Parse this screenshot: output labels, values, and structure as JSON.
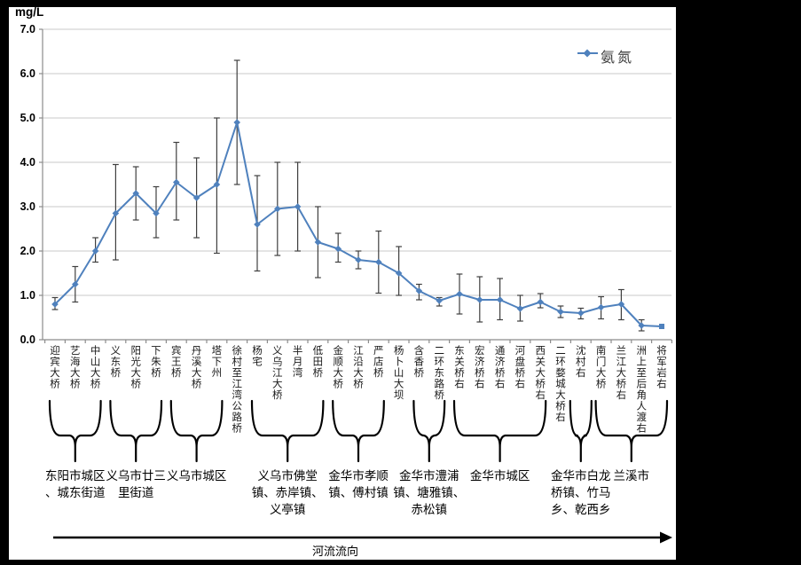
{
  "chart_data": {
    "type": "line",
    "title": "",
    "ylabel": "mg/L",
    "xlabel": "",
    "ylim": [
      0,
      7
    ],
    "ytick_step": 1,
    "grid": true,
    "legend_label": "氨氮",
    "legend_position": "top-right",
    "categories": [
      "迎宾大桥",
      "艺海大桥",
      "中山大桥",
      "义东桥",
      "阳光大桥",
      "下朱桥",
      "宾王桥",
      "丹溪大桥",
      "塔下州",
      "徐村至江湾公路桥",
      "杨宅",
      "义乌江大桥",
      "半月湾",
      "低田桥",
      "金顺大桥",
      "江沿大桥",
      "严店桥",
      "杨卜山大坝",
      "含香桥",
      "二环东路桥",
      "东关桥右",
      "宏济桥右",
      "通济桥右",
      "河盘桥右",
      "西关大桥右",
      "二环婺城大桥右",
      "沈村右",
      "南门大桥",
      "兰江大桥右",
      "洲上至后角人渡右",
      "将军岩右"
    ],
    "series": [
      {
        "name": "氨氮",
        "values": [
          0.8,
          1.25,
          2.0,
          2.85,
          3.3,
          2.85,
          3.55,
          3.2,
          3.5,
          4.9,
          2.6,
          2.95,
          3.0,
          2.2,
          2.05,
          1.8,
          1.75,
          1.5,
          1.1,
          0.88,
          1.03,
          0.9,
          0.9,
          0.7,
          0.85,
          0.63,
          0.6,
          0.73,
          0.8,
          0.32,
          0.3
        ],
        "error_low": [
          0.68,
          0.85,
          1.75,
          1.8,
          2.7,
          2.3,
          2.7,
          2.3,
          1.95,
          3.5,
          1.55,
          1.9,
          2.0,
          1.4,
          1.75,
          1.6,
          1.05,
          1.0,
          0.9,
          0.76,
          0.58,
          0.4,
          0.45,
          0.42,
          0.72,
          0.5,
          0.47,
          0.47,
          0.45,
          0.2,
          null
        ],
        "error_high": [
          0.95,
          1.65,
          2.3,
          3.95,
          3.9,
          3.45,
          4.45,
          4.1,
          5.0,
          6.3,
          3.7,
          4.0,
          4.0,
          3.0,
          2.4,
          2.0,
          2.45,
          2.1,
          1.25,
          0.95,
          1.48,
          1.42,
          1.38,
          1.0,
          1.04,
          0.76,
          0.71,
          0.97,
          1.13,
          0.45,
          null
        ]
      }
    ]
  },
  "region_groups": [
    {
      "label": "东阳市城区、城东街道",
      "lines": [
        "东阳市城区",
        "、城东街道"
      ],
      "start": 0,
      "end": 2
    },
    {
      "label": "义乌市廿三里街道",
      "lines": [
        "义乌市廿三",
        "里街道"
      ],
      "start": 3,
      "end": 5
    },
    {
      "label": "义乌市城区",
      "lines": [
        "义乌市城区"
      ],
      "start": 6,
      "end": 8
    },
    {
      "label": "义乌市佛堂镇、赤岸镇、义亭镇",
      "lines": [
        "义乌市佛堂",
        "镇、赤岸镇、",
        "义亭镇"
      ],
      "start": 10,
      "end": 13
    },
    {
      "label": "金华市孝顺镇、傅村镇",
      "lines": [
        "金华市孝顺",
        "镇、傅村镇"
      ],
      "start": 14,
      "end": 16
    },
    {
      "label": "金华市澧浦镇、塘雅镇、赤松镇",
      "lines": [
        "金华市澧浦",
        "镇、塘雅镇、",
        "赤松镇"
      ],
      "start": 18,
      "end": 19
    },
    {
      "label": "金华市城区",
      "lines": [
        "金华市城区"
      ],
      "start": 20,
      "end": 24
    },
    {
      "label": "金华市白龙桥镇、竹马乡、乾西乡",
      "lines": [
        "金华市白龙",
        "桥镇、竹马",
        "乡、乾西乡"
      ],
      "start": 26,
      "end": 26
    },
    {
      "label": "兰溪市",
      "lines": [
        "兰溪市"
      ],
      "start": 27,
      "end": 30
    }
  ],
  "flow": {
    "label": "河流流向"
  },
  "colors": {
    "series": "#4F81BD",
    "error_bar": "#3f3f3f",
    "gridline": "#c9c9c9",
    "axis": "#8c8c8c",
    "brace": "#000000",
    "legend_text": "#404040"
  }
}
